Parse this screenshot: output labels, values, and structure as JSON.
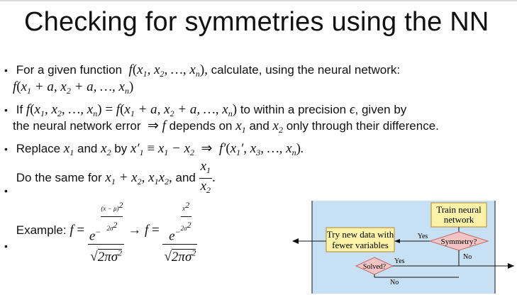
{
  "slide": {
    "title": "Checking for symmetries using the NN",
    "bullet1": {
      "prefix": "For a given function",
      "func": "f(x",
      "suffix": "calculate, using the neural network:",
      "line2": "f(x"
    },
    "bullet2": {
      "prefix": "If",
      "mid": "to within a precision",
      "mid2": ", given by",
      "line2a": "the neural network error",
      "line2b": "depends on",
      "line2c": "and",
      "line2d": "only through their difference."
    },
    "bullet3": {
      "prefix": "Replace",
      "and": "and",
      "by": "by"
    },
    "bullet4": {
      "prefix": "Do the same for",
      "and": "and"
    },
    "bullet5": {
      "prefix": "Example:"
    }
  },
  "flowchart": {
    "train_label_1": "Train neural",
    "train_label_2": "network",
    "symmetry_label": "Symmetry?",
    "try_label_1": "Try new data with",
    "try_label_2": "fewer variables",
    "solved_label": "Solved?",
    "yes_1": "Yes",
    "no_1": "No",
    "yes_2": "Yes",
    "no_2": "No",
    "colors": {
      "background": "#c8e0f3",
      "box_fill": "#fdf3a8",
      "box_stroke": "#b8862a",
      "diamond_fill": "#f3c4c4",
      "diamond_stroke": "#c2696b"
    }
  }
}
